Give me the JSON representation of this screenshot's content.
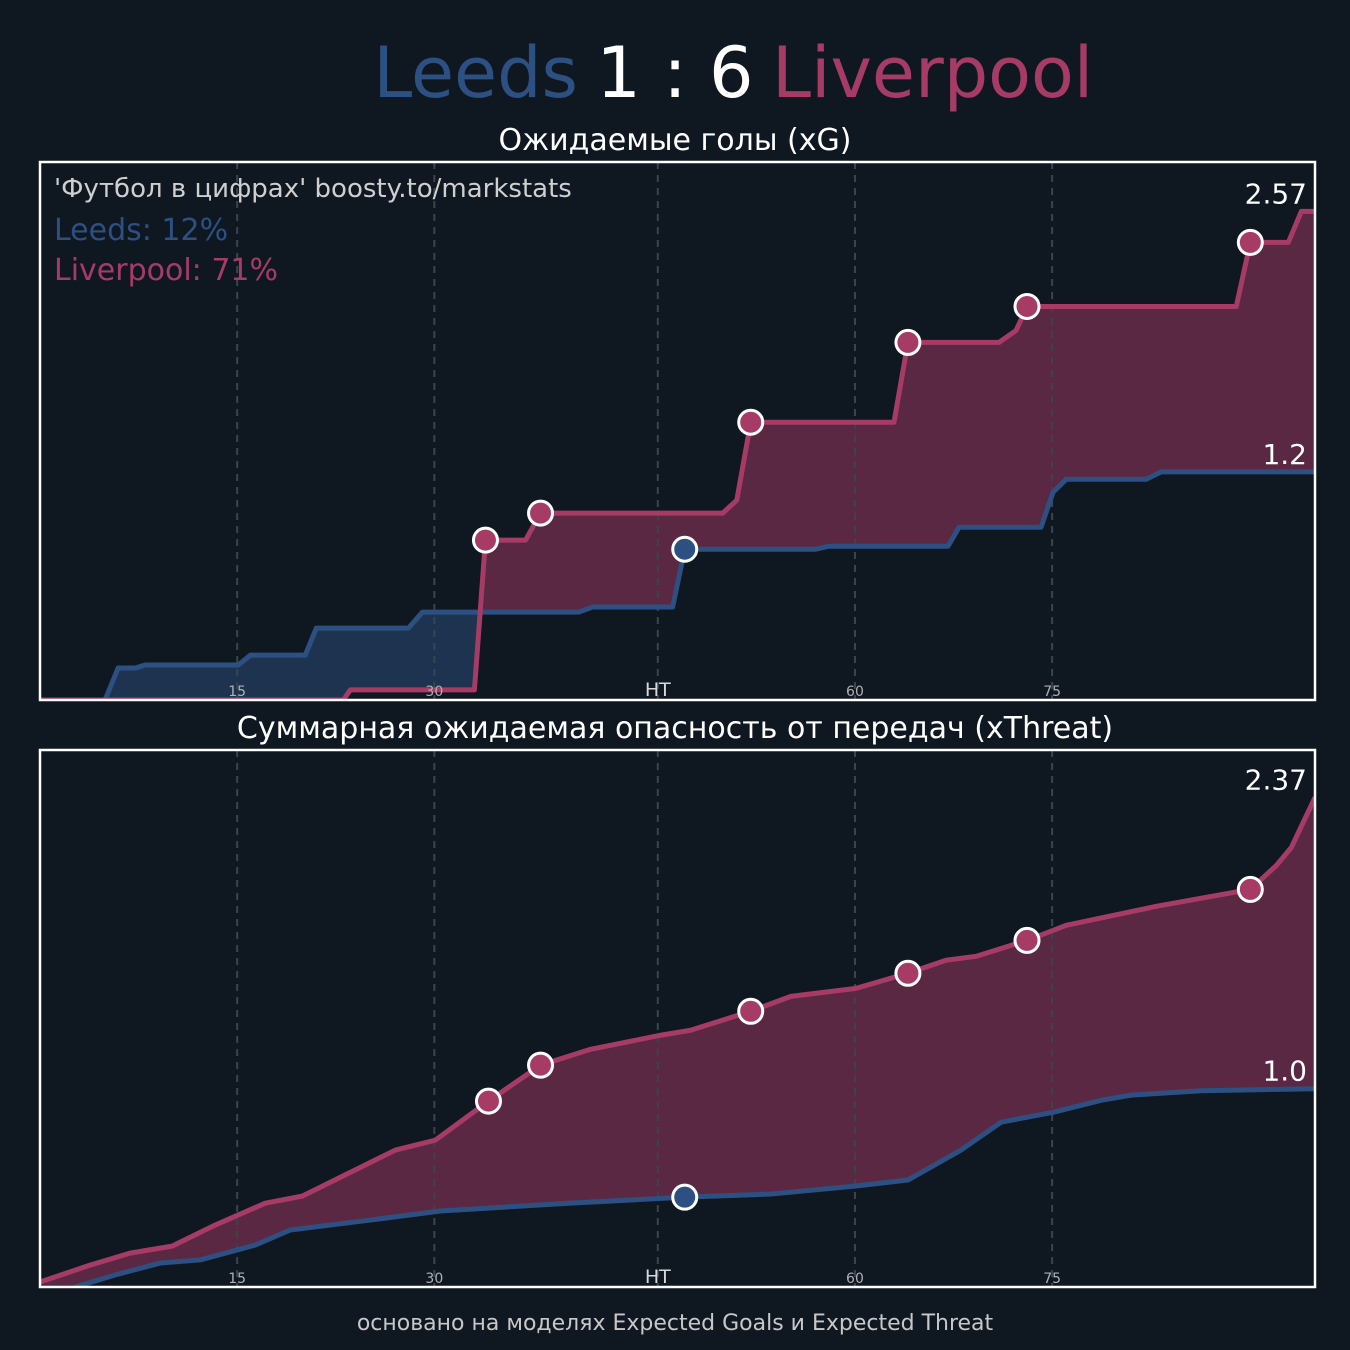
{
  "header": {
    "home": "Leeds",
    "score": "1 : 6",
    "away": "Liverpool"
  },
  "footer": "основано на моделях Expected Goals и Expected Threat",
  "chart_data": [
    {
      "type": "line",
      "title": "Ожидаемые голы (xG)",
      "watermark": "'Футбол в цифрах' boosty.to/markstats",
      "annotations": [
        "Leeds: 12%",
        "Liverpool: 71%"
      ],
      "xlim": [
        0,
        97
      ],
      "ylim": [
        0,
        2.83
      ],
      "xticks": [
        15,
        30,
        {
          "value": 47,
          "label": "HT"
        },
        {
          "value": 62,
          "label": "60"
        },
        {
          "value": 77,
          "label": "75"
        }
      ],
      "grid": true,
      "series": [
        {
          "color": "#2d5082",
          "fill": "#1e3350",
          "x": [
            0,
            4.95,
            5.94,
            7.24,
            8.0,
            15.08,
            16.0,
            20.18,
            21.02,
            28.03,
            29.09,
            40.97,
            42.04,
            48.13,
            49.05,
            59.02,
            60.02,
            69.08,
            69.92,
            76.16,
            77.07,
            78.07,
            84.16,
            85.3,
            97
          ],
          "values": [
            0,
            0,
            0.168,
            0.168,
            0.184,
            0.184,
            0.236,
            0.236,
            0.378,
            0.378,
            0.462,
            0.462,
            0.489,
            0.489,
            0.793,
            0.793,
            0.809,
            0.809,
            0.909,
            0.909,
            1.093,
            1.161,
            1.161,
            1.2,
            1.2
          ],
          "goal_x": [
            49.05
          ],
          "goal_values": [
            0.793
          ],
          "end_label": "1.2"
        },
        {
          "color": "#a63c66",
          "fill": "#5a2843",
          "x": [
            0,
            23.08,
            23.61,
            33.05,
            33.89,
            36.94,
            38.08,
            51.94,
            53.01,
            54.07,
            64.97,
            66.03,
            72.96,
            74.26,
            75.09,
            91.01,
            92.08,
            94.97,
            95.96,
            97
          ],
          "values": [
            0,
            0,
            0.053,
            0.053,
            0.841,
            0.841,
            0.983,
            0.983,
            1.051,
            1.461,
            1.461,
            1.881,
            1.881,
            1.944,
            2.07,
            2.07,
            2.407,
            2.407,
            2.57,
            2.57
          ],
          "goal_x": [
            33.89,
            38.08,
            54.07,
            66.03,
            75.09,
            92.08
          ],
          "goal_values": [
            0.841,
            0.983,
            1.461,
            1.881,
            2.07,
            2.407
          ],
          "end_label": "2.57"
        }
      ]
    },
    {
      "type": "line",
      "title": "Суммарная ожидаемая опасность от передач (xThreat)",
      "xlim": [
        0,
        97
      ],
      "ylim": [
        0,
        2.6
      ],
      "xticks": [
        15,
        30,
        {
          "value": 47,
          "label": "HT"
        },
        {
          "value": 62,
          "label": "60"
        },
        {
          "value": 77,
          "label": "75"
        }
      ],
      "grid": true,
      "series": [
        {
          "color": "#2d5082",
          "fill": "#1e3350",
          "x": [
            2.67,
            5.71,
            9.14,
            12.19,
            16.37,
            19.04,
            25.13,
            30.46,
            40.37,
            49.05,
            55.6,
            62.07,
            66.03,
            70.07,
            73.12,
            77.07,
            80.73,
            83.01,
            88.35,
            97
          ],
          "values": [
            0,
            0.058,
            0.116,
            0.131,
            0.203,
            0.276,
            0.324,
            0.368,
            0.406,
            0.435,
            0.45,
            0.489,
            0.518,
            0.663,
            0.798,
            0.846,
            0.904,
            0.929,
            0.95,
            0.96
          ],
          "goal_x": [
            49.05
          ],
          "goal_values": [
            0.435
          ],
          "end_label": "1.0"
        },
        {
          "color": "#a63c66",
          "fill": "#5a2843",
          "x": [
            0,
            3.81,
            6.85,
            10.05,
            13.33,
            17.14,
            19.95,
            27.04,
            30.08,
            34.12,
            38.08,
            41.89,
            47.22,
            49.5,
            54.07,
            57.12,
            62.07,
            66.03,
            68.93,
            71.21,
            75.09,
            78.07,
            84.92,
            92.08,
            94.06,
            95.2,
            97
          ],
          "values": [
            0.024,
            0.106,
            0.164,
            0.198,
            0.3,
            0.406,
            0.44,
            0.663,
            0.711,
            0.9,
            1.074,
            1.151,
            1.219,
            1.243,
            1.335,
            1.407,
            1.446,
            1.519,
            1.582,
            1.601,
            1.678,
            1.751,
            1.843,
            1.925,
            2.041,
            2.128,
            2.37
          ],
          "goal_x": [
            34.12,
            38.08,
            54.07,
            66.03,
            75.09,
            92.08
          ],
          "goal_values": [
            0.9,
            1.074,
            1.335,
            1.519,
            1.678,
            1.925
          ],
          "end_label": "2.37"
        }
      ]
    }
  ]
}
